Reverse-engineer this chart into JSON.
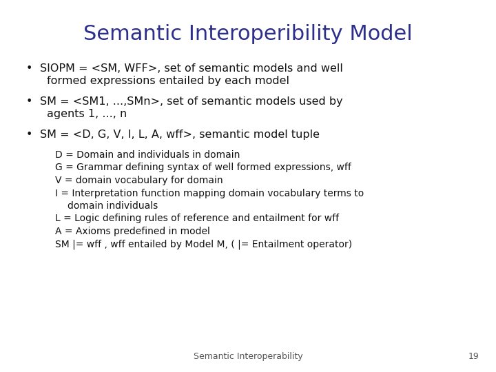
{
  "title": "Semantic Interoperibility Model",
  "title_color": "#2E2E8B",
  "title_fontsize": 22,
  "background_color": "#FFFFFF",
  "text_color": "#111111",
  "bullet_fontsize": 11.5,
  "sub_fontsize": 10.0,
  "footer_text": "Semantic Interoperability",
  "footer_number": "19",
  "bullet1_line1": "SIOPM = <SM, WFF>, set of semantic models and well",
  "bullet1_line2": "formed expressions entailed by each model",
  "bullet2_line1": "SM = <SM1, ...,SMn>, set of semantic models used by",
  "bullet2_line2": "agents 1, ..., n",
  "bullet3": "SM = <D, G, V, I, L, A, wff>, semantic model tuple",
  "sub1": "D = Domain and individuals in domain",
  "sub2": "G = Grammar defining syntax of well formed expressions, wff",
  "sub3": "V = domain vocabulary for domain",
  "sub4a": "I = Interpretation function mapping domain vocabulary terms to",
  "sub4b": "    domain individuals",
  "sub5": "L = Logic defining rules of reference and entailment for wff",
  "sub6": "A = Axioms predefined in model",
  "sub7": "SM |= wff , wff entailed by Model M, ( |= Entailment operator)"
}
